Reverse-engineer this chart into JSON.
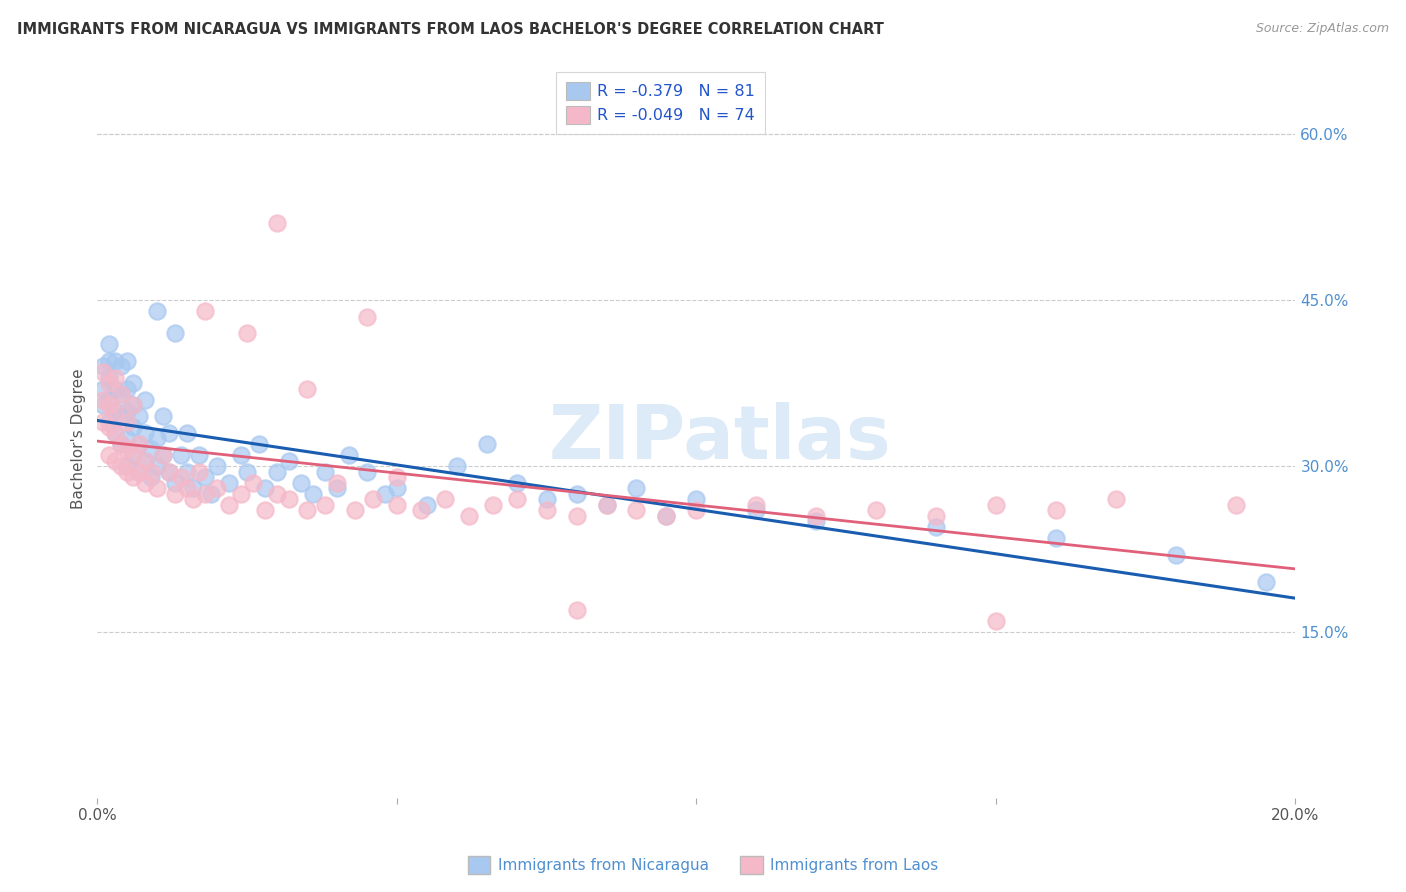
{
  "title": "IMMIGRANTS FROM NICARAGUA VS IMMIGRANTS FROM LAOS BACHELOR'S DEGREE CORRELATION CHART",
  "source": "Source: ZipAtlas.com",
  "ylabel": "Bachelor's Degree",
  "right_yticks": [
    "60.0%",
    "45.0%",
    "30.0%",
    "15.0%"
  ],
  "right_ytick_vals": [
    0.6,
    0.45,
    0.3,
    0.15
  ],
  "legend_r1": "R = -0.379   N = 81",
  "legend_r2": "R = -0.049   N = 74",
  "color_nicaragua": "#A8C8F0",
  "color_laos": "#F5B8C8",
  "line_color_nicaragua": "#1A5CB0",
  "line_color_laos": "#E0607A",
  "watermark": "ZIPatlas",
  "watermark_color": "#DDEAF8",
  "background_color": "#FFFFFF",
  "xlim": [
    0.0,
    0.2
  ],
  "ylim": [
    0.0,
    0.65
  ],
  "nicaragua_x": [
    0.001,
    0.001,
    0.001,
    0.002,
    0.002,
    0.002,
    0.002,
    0.002,
    0.003,
    0.003,
    0.003,
    0.003,
    0.004,
    0.004,
    0.004,
    0.004,
    0.005,
    0.005,
    0.005,
    0.005,
    0.005,
    0.006,
    0.006,
    0.006,
    0.006,
    0.007,
    0.007,
    0.007,
    0.008,
    0.008,
    0.008,
    0.009,
    0.009,
    0.01,
    0.01,
    0.01,
    0.011,
    0.011,
    0.012,
    0.012,
    0.013,
    0.013,
    0.014,
    0.015,
    0.015,
    0.016,
    0.017,
    0.018,
    0.019,
    0.02,
    0.022,
    0.024,
    0.025,
    0.027,
    0.028,
    0.03,
    0.032,
    0.034,
    0.036,
    0.038,
    0.04,
    0.042,
    0.045,
    0.048,
    0.05,
    0.055,
    0.06,
    0.065,
    0.07,
    0.075,
    0.08,
    0.085,
    0.09,
    0.095,
    0.1,
    0.11,
    0.12,
    0.14,
    0.16,
    0.18,
    0.195
  ],
  "nicaragua_y": [
    0.355,
    0.37,
    0.39,
    0.34,
    0.36,
    0.38,
    0.395,
    0.41,
    0.33,
    0.35,
    0.37,
    0.395,
    0.32,
    0.345,
    0.365,
    0.39,
    0.3,
    0.325,
    0.35,
    0.37,
    0.395,
    0.31,
    0.335,
    0.355,
    0.375,
    0.295,
    0.32,
    0.345,
    0.305,
    0.33,
    0.36,
    0.29,
    0.315,
    0.3,
    0.325,
    0.44,
    0.31,
    0.345,
    0.295,
    0.33,
    0.285,
    0.42,
    0.31,
    0.295,
    0.33,
    0.28,
    0.31,
    0.29,
    0.275,
    0.3,
    0.285,
    0.31,
    0.295,
    0.32,
    0.28,
    0.295,
    0.305,
    0.285,
    0.275,
    0.295,
    0.28,
    0.31,
    0.295,
    0.275,
    0.28,
    0.265,
    0.3,
    0.32,
    0.285,
    0.27,
    0.275,
    0.265,
    0.28,
    0.255,
    0.27,
    0.26,
    0.25,
    0.245,
    0.235,
    0.22,
    0.195
  ],
  "laos_x": [
    0.001,
    0.001,
    0.001,
    0.002,
    0.002,
    0.002,
    0.002,
    0.003,
    0.003,
    0.003,
    0.003,
    0.004,
    0.004,
    0.004,
    0.005,
    0.005,
    0.005,
    0.006,
    0.006,
    0.006,
    0.007,
    0.007,
    0.008,
    0.008,
    0.009,
    0.01,
    0.011,
    0.012,
    0.013,
    0.014,
    0.015,
    0.016,
    0.017,
    0.018,
    0.02,
    0.022,
    0.024,
    0.026,
    0.028,
    0.03,
    0.032,
    0.035,
    0.038,
    0.04,
    0.043,
    0.046,
    0.05,
    0.054,
    0.058,
    0.062,
    0.066,
    0.07,
    0.075,
    0.08,
    0.085,
    0.09,
    0.095,
    0.1,
    0.11,
    0.12,
    0.13,
    0.14,
    0.15,
    0.16,
    0.17,
    0.018,
    0.025,
    0.03,
    0.035,
    0.045,
    0.05,
    0.08,
    0.15,
    0.19
  ],
  "laos_y": [
    0.34,
    0.36,
    0.385,
    0.31,
    0.335,
    0.355,
    0.375,
    0.305,
    0.33,
    0.35,
    0.38,
    0.3,
    0.32,
    0.365,
    0.295,
    0.315,
    0.34,
    0.29,
    0.31,
    0.355,
    0.295,
    0.32,
    0.285,
    0.305,
    0.295,
    0.28,
    0.31,
    0.295,
    0.275,
    0.29,
    0.28,
    0.27,
    0.295,
    0.275,
    0.28,
    0.265,
    0.275,
    0.285,
    0.26,
    0.275,
    0.27,
    0.26,
    0.265,
    0.285,
    0.26,
    0.27,
    0.265,
    0.26,
    0.27,
    0.255,
    0.265,
    0.27,
    0.26,
    0.255,
    0.265,
    0.26,
    0.255,
    0.26,
    0.265,
    0.255,
    0.26,
    0.255,
    0.265,
    0.26,
    0.27,
    0.44,
    0.42,
    0.52,
    0.37,
    0.435,
    0.29,
    0.17,
    0.16,
    0.265
  ]
}
